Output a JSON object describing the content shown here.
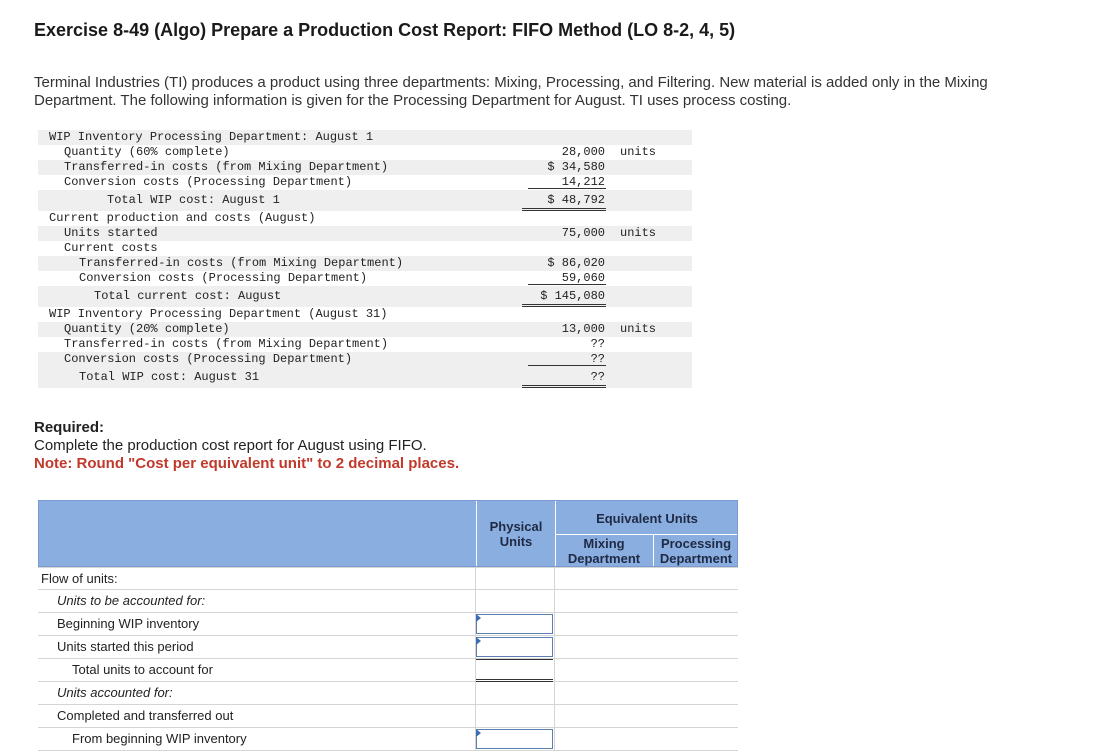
{
  "title": "Exercise 8-49 (Algo) Prepare a Production Cost Report: FIFO Method (LO 8-2, 4, 5)",
  "intro": "Terminal Industries (TI) produces a product using three departments: Mixing, Processing, and Filtering. New material is added only in the Mixing Department. The following information is given for the Processing Department for August. TI uses process costing.",
  "given_data": [
    {
      "label": "WIP Inventory Processing Department: August 1",
      "value": "",
      "unit": ""
    },
    {
      "label": "Quantity (60% complete)",
      "value": "28,000",
      "unit": "units"
    },
    {
      "label": "Transferred-in costs (from Mixing Department)",
      "value": "$ 34,580",
      "unit": ""
    },
    {
      "label": "Conversion costs (Processing Department)",
      "value": "14,212",
      "unit": ""
    },
    {
      "label": "Total WIP cost: August 1",
      "value": "$ 48,792",
      "unit": ""
    },
    {
      "label": "Current production and costs (August)",
      "value": "",
      "unit": ""
    },
    {
      "label": "Units started",
      "value": "75,000",
      "unit": "units"
    },
    {
      "label": "Current costs",
      "value": "",
      "unit": ""
    },
    {
      "label": "Transferred-in costs (from Mixing Department)",
      "value": "$ 86,020",
      "unit": ""
    },
    {
      "label": "Conversion costs (Processing Department)",
      "value": "59,060",
      "unit": ""
    },
    {
      "label": "Total current cost: August",
      "value": "$ 145,080",
      "unit": ""
    },
    {
      "label": "WIP Inventory Processing Department (August 31)",
      "value": "",
      "unit": ""
    },
    {
      "label": "Quantity (20% complete)",
      "value": "13,000",
      "unit": "units"
    },
    {
      "label": "Transferred-in costs (from Mixing Department)",
      "value": "??",
      "unit": ""
    },
    {
      "label": "Conversion costs (Processing Department)",
      "value": "??",
      "unit": ""
    },
    {
      "label": "Total WIP cost: August 31",
      "value": "??",
      "unit": ""
    }
  ],
  "required": {
    "heading": "Required:",
    "text": "Complete the production cost report for August using FIFO.",
    "note": "Note: Round \"Cost per equivalent unit\" to 2 decimal places."
  },
  "report": {
    "header": {
      "physical_units": "Physical Units",
      "equivalent_units": "Equivalent Units",
      "mixing_department": "Mixing Department",
      "processing_department": "Processing Department"
    },
    "rows": [
      {
        "label": "Flow of units:"
      },
      {
        "label": "Units to be accounted for:"
      },
      {
        "label": "Beginning WIP inventory"
      },
      {
        "label": "Units started this period"
      },
      {
        "label": "Total units to account for"
      },
      {
        "label": "Units accounted for:"
      },
      {
        "label": "Completed and transferred out"
      },
      {
        "label": "From beginning WIP inventory"
      }
    ]
  }
}
